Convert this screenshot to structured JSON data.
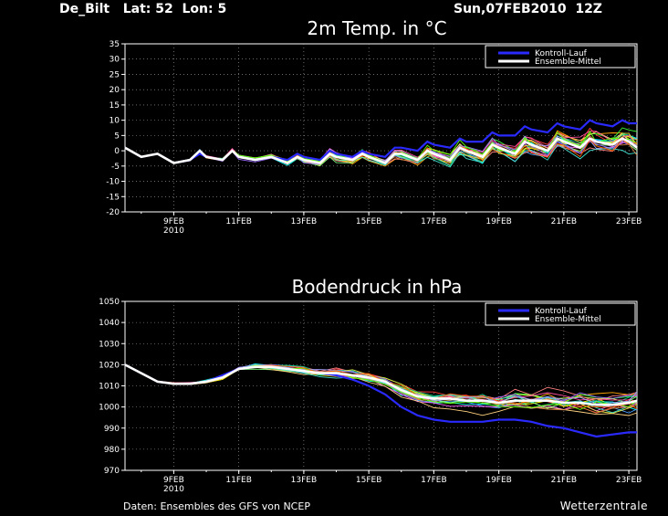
{
  "header": {
    "station": "De_Bilt   Lat: 52  Lon: 5",
    "run": "Sun,07FEB2010  12Z"
  },
  "footer": {
    "source": "Daten: Ensembles des GFS von NCEP",
    "brand": "Wetterzentrale"
  },
  "legend": {
    "control": "Kontroll-Lauf",
    "mean": "Ensemble-Mittel"
  },
  "colors": {
    "background": "#000000",
    "control": "#2a2aff",
    "mean": "#ffffff"
  },
  "chart_data": [
    {
      "type": "line",
      "title": "2m Temp. in °C",
      "ylim": [
        -20,
        35
      ],
      "yticks": [
        35,
        30,
        25,
        20,
        15,
        10,
        5,
        0,
        -5,
        -10,
        -15,
        -20
      ],
      "xlim": [
        0,
        15.75
      ],
      "xticks": [
        {
          "x": 1.5,
          "label": "9FEB",
          "sub": "2010"
        },
        {
          "x": 3.5,
          "label": "11FEB"
        },
        {
          "x": 5.5,
          "label": "13FEB"
        },
        {
          "x": 7.5,
          "label": "15FEB"
        },
        {
          "x": 9.5,
          "label": "17FEB"
        },
        {
          "x": 11.5,
          "label": "19FEB"
        },
        {
          "x": 13.5,
          "label": "21FEB"
        },
        {
          "x": 15.5,
          "label": "23FEB"
        }
      ],
      "grid": true,
      "legend_position": "top-right",
      "x_unit": "days from 07FEB2010 12Z",
      "mean": [
        [
          0,
          1
        ],
        [
          0.5,
          -2
        ],
        [
          1,
          -1
        ],
        [
          1.5,
          -4
        ],
        [
          2,
          -3
        ],
        [
          2.3,
          0
        ],
        [
          2.5,
          -2
        ],
        [
          3,
          -3
        ],
        [
          3.3,
          0
        ],
        [
          3.5,
          -2
        ],
        [
          4,
          -3
        ],
        [
          4.5,
          -2
        ],
        [
          5,
          -4
        ],
        [
          5.3,
          -2
        ],
        [
          5.5,
          -3
        ],
        [
          6,
          -4
        ],
        [
          6.3,
          -1
        ],
        [
          6.5,
          -2
        ],
        [
          7,
          -3
        ],
        [
          7.3,
          -1
        ],
        [
          7.5,
          -2
        ],
        [
          8,
          -4
        ],
        [
          8.3,
          -1
        ],
        [
          8.5,
          -1
        ],
        [
          9,
          -3
        ],
        [
          9.3,
          0
        ],
        [
          9.5,
          -1
        ],
        [
          10,
          -3
        ],
        [
          10.3,
          1
        ],
        [
          10.5,
          0
        ],
        [
          11,
          -2
        ],
        [
          11.3,
          2
        ],
        [
          11.5,
          1
        ],
        [
          12,
          -1
        ],
        [
          12.3,
          3
        ],
        [
          12.5,
          2
        ],
        [
          13,
          0
        ],
        [
          13.3,
          4
        ],
        [
          13.5,
          3
        ],
        [
          14,
          1
        ],
        [
          14.3,
          4
        ],
        [
          14.5,
          3
        ],
        [
          15,
          2
        ],
        [
          15.3,
          4
        ],
        [
          15.5,
          3
        ],
        [
          15.75,
          1
        ]
      ],
      "control": [
        [
          0,
          1
        ],
        [
          0.5,
          -2
        ],
        [
          1,
          -1
        ],
        [
          1.5,
          -4
        ],
        [
          2,
          -3
        ],
        [
          2.3,
          -1
        ],
        [
          2.5,
          -2
        ],
        [
          3,
          -3
        ],
        [
          3.3,
          0
        ],
        [
          3.5,
          -2
        ],
        [
          4,
          -3
        ],
        [
          4.5,
          -2
        ],
        [
          5,
          -3
        ],
        [
          5.3,
          -1
        ],
        [
          5.5,
          -2
        ],
        [
          6,
          -3
        ],
        [
          6.3,
          0
        ],
        [
          6.5,
          -1
        ],
        [
          7,
          -2
        ],
        [
          7.3,
          0
        ],
        [
          7.5,
          -1
        ],
        [
          8,
          -2
        ],
        [
          8.3,
          1
        ],
        [
          8.5,
          1
        ],
        [
          9,
          0
        ],
        [
          9.3,
          3
        ],
        [
          9.5,
          2
        ],
        [
          10,
          1
        ],
        [
          10.3,
          4
        ],
        [
          10.5,
          3
        ],
        [
          11,
          3
        ],
        [
          11.3,
          6
        ],
        [
          11.5,
          5
        ],
        [
          12,
          5
        ],
        [
          12.3,
          8
        ],
        [
          12.5,
          7
        ],
        [
          13,
          6
        ],
        [
          13.3,
          9
        ],
        [
          13.5,
          8
        ],
        [
          14,
          7
        ],
        [
          14.3,
          10
        ],
        [
          14.5,
          9
        ],
        [
          15,
          8
        ],
        [
          15.3,
          10
        ],
        [
          15.5,
          9
        ],
        [
          15.75,
          9
        ]
      ]
    },
    {
      "type": "line",
      "title": "Bodendruck in hPa",
      "ylim": [
        970,
        1050
      ],
      "yticks": [
        1050,
        1040,
        1030,
        1020,
        1010,
        1000,
        990,
        980,
        970
      ],
      "xlim": [
        0,
        15.75
      ],
      "xticks": [
        {
          "x": 1.5,
          "label": "9FEB",
          "sub": "2010"
        },
        {
          "x": 3.5,
          "label": "11FEB"
        },
        {
          "x": 5.5,
          "label": "13FEB"
        },
        {
          "x": 7.5,
          "label": "15FEB"
        },
        {
          "x": 9.5,
          "label": "17FEB"
        },
        {
          "x": 11.5,
          "label": "19FEB"
        },
        {
          "x": 13.5,
          "label": "21FEB"
        },
        {
          "x": 15.5,
          "label": "23FEB"
        }
      ],
      "grid": true,
      "legend_position": "top-right",
      "x_unit": "days from 07FEB2010 12Z",
      "mean": [
        [
          0,
          1020
        ],
        [
          0.5,
          1016
        ],
        [
          1,
          1012
        ],
        [
          1.5,
          1011
        ],
        [
          2,
          1011
        ],
        [
          2.5,
          1012
        ],
        [
          3,
          1014
        ],
        [
          3.5,
          1018
        ],
        [
          4,
          1019
        ],
        [
          4.5,
          1019
        ],
        [
          5,
          1018
        ],
        [
          5.5,
          1017
        ],
        [
          6,
          1016
        ],
        [
          6.5,
          1016
        ],
        [
          7,
          1015
        ],
        [
          7.5,
          1014
        ],
        [
          8,
          1012
        ],
        [
          8.5,
          1008
        ],
        [
          9,
          1005
        ],
        [
          9.5,
          1004
        ],
        [
          10,
          1004
        ],
        [
          10.5,
          1003
        ],
        [
          11,
          1003
        ],
        [
          11.5,
          1002
        ],
        [
          12,
          1003
        ],
        [
          12.5,
          1003
        ],
        [
          13,
          1003
        ],
        [
          13.5,
          1002
        ],
        [
          14,
          1002
        ],
        [
          14.5,
          1001
        ],
        [
          15,
          1001
        ],
        [
          15.5,
          1002
        ],
        [
          15.75,
          1003
        ]
      ],
      "control": [
        [
          0,
          1020
        ],
        [
          0.5,
          1016
        ],
        [
          1,
          1012
        ],
        [
          1.5,
          1011
        ],
        [
          2,
          1011
        ],
        [
          2.5,
          1012
        ],
        [
          3,
          1015
        ],
        [
          3.5,
          1018
        ],
        [
          4,
          1019
        ],
        [
          4.5,
          1019
        ],
        [
          5,
          1018
        ],
        [
          5.5,
          1017
        ],
        [
          6,
          1016
        ],
        [
          6.5,
          1015
        ],
        [
          7,
          1013
        ],
        [
          7.5,
          1010
        ],
        [
          8,
          1006
        ],
        [
          8.5,
          1000
        ],
        [
          9,
          996
        ],
        [
          9.5,
          994
        ],
        [
          10,
          993
        ],
        [
          10.5,
          993
        ],
        [
          11,
          993
        ],
        [
          11.5,
          994
        ],
        [
          12,
          994
        ],
        [
          12.5,
          993
        ],
        [
          13,
          991
        ],
        [
          13.5,
          990
        ],
        [
          14,
          988
        ],
        [
          14.5,
          986
        ],
        [
          15,
          987
        ],
        [
          15.5,
          988
        ],
        [
          15.75,
          988
        ]
      ]
    }
  ]
}
